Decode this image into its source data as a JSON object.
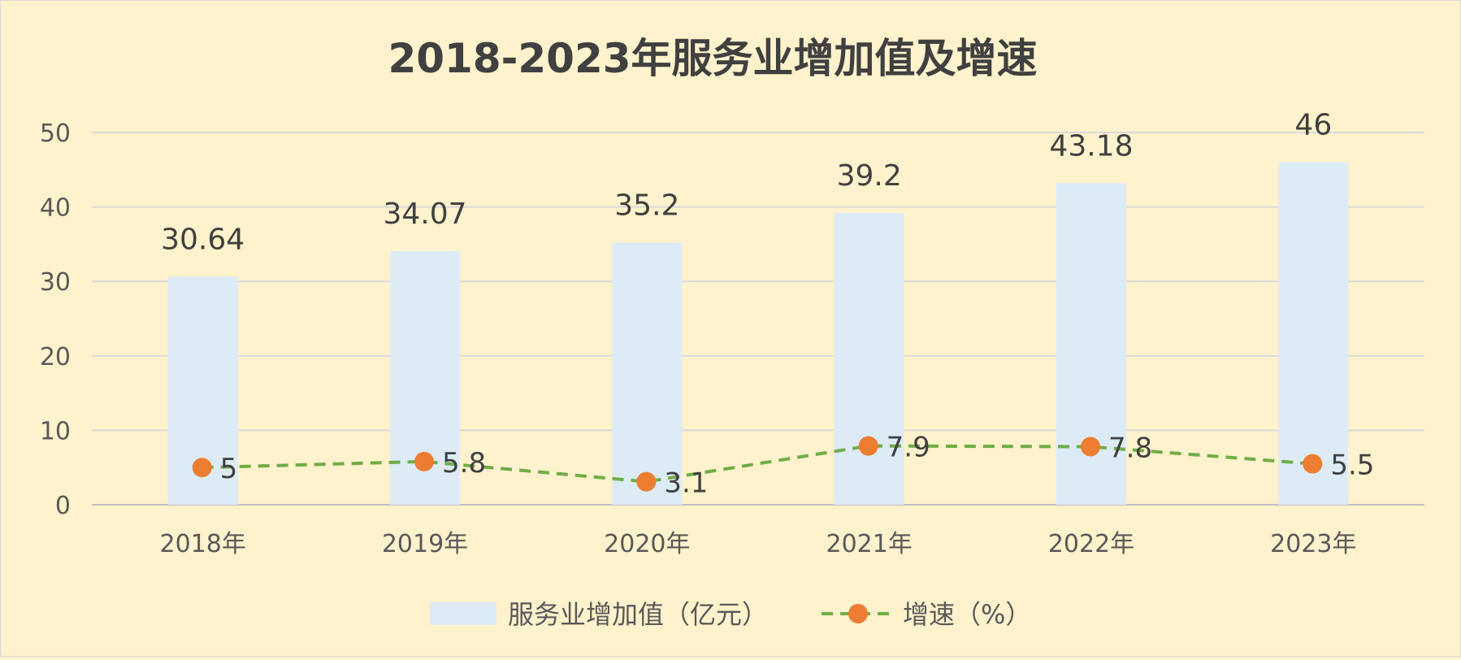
{
  "chart_data": {
    "type": "bar",
    "title": "2018-2023年服务业增加值及增速",
    "categories": [
      "2018年",
      "2019年",
      "2020年",
      "2021年",
      "2022年",
      "2023年"
    ],
    "ylim": [
      0,
      50
    ],
    "yticks": [
      0,
      10,
      20,
      30,
      40,
      50
    ],
    "grid": true,
    "legend_position": "bottom",
    "series": [
      {
        "name": "服务业增加值（亿元）",
        "type": "bar",
        "values": [
          30.64,
          34.07,
          35.2,
          39.2,
          43.18,
          46
        ],
        "labels": [
          "30.64",
          "34.07",
          "35.2",
          "39.2",
          "43.18",
          "46"
        ],
        "color": "#DDEBF7"
      },
      {
        "name": "增速（%）",
        "type": "line",
        "values": [
          5,
          5.8,
          3.1,
          7.9,
          7.8,
          5.5
        ],
        "labels": [
          "5",
          "5.8",
          "3.1",
          "7.9",
          "7.8",
          "5.5"
        ],
        "line_color": "#70AD47",
        "line_style": "dashed",
        "marker_color": "#ED7D31"
      }
    ]
  },
  "colors": {
    "background": "#FFF2CC",
    "grid": "#D9D9D9",
    "axis": "#BFBFBF"
  }
}
